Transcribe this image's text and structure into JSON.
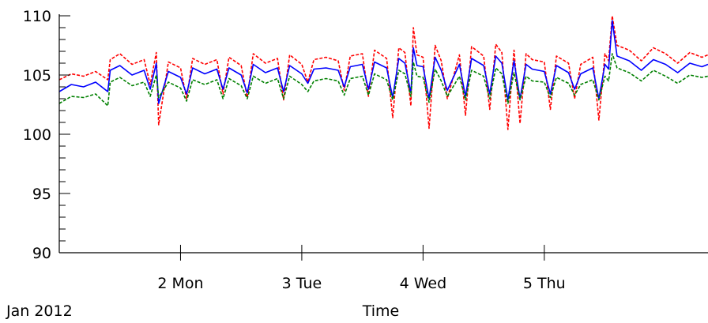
{
  "chart_data": {
    "type": "line",
    "title": "",
    "xlabel": "Time",
    "ylabel": "",
    "ylim": [
      90,
      110
    ],
    "xlim": [
      1.0,
      6.35
    ],
    "y_ticks": [
      90,
      95,
      100,
      105,
      110
    ],
    "y_tick_labels": [
      "90",
      "95",
      "100",
      "105",
      "110"
    ],
    "x_ticks": [
      2,
      3,
      4,
      5
    ],
    "x_tick_labels": [
      "2 Mon",
      "3 Tue",
      "4 Wed",
      "5 Thu"
    ],
    "x_origin_label": "Jan 2012",
    "grid": false,
    "legend": "none",
    "series": [
      {
        "color": "#ff0000",
        "dash": "dashed",
        "x": [
          1.0,
          1.1,
          1.2,
          1.3,
          1.4,
          1.42,
          1.5,
          1.6,
          1.7,
          1.75,
          1.8,
          1.82,
          1.9,
          2.0,
          2.05,
          2.1,
          2.2,
          2.3,
          2.35,
          2.4,
          2.5,
          2.55,
          2.6,
          2.7,
          2.8,
          2.85,
          2.9,
          3.0,
          3.05,
          3.1,
          3.2,
          3.3,
          3.35,
          3.4,
          3.5,
          3.55,
          3.6,
          3.7,
          3.75,
          3.8,
          3.85,
          3.9,
          3.92,
          3.95,
          4.0,
          4.05,
          4.1,
          4.15,
          4.2,
          4.3,
          4.35,
          4.4,
          4.5,
          4.55,
          4.6,
          4.65,
          4.7,
          4.75,
          4.8,
          4.85,
          4.9,
          5.0,
          5.05,
          5.1,
          5.2,
          5.25,
          5.3,
          5.4,
          5.45,
          5.5,
          5.53,
          5.56,
          5.6,
          5.7,
          5.8,
          5.9,
          6.0,
          6.1,
          6.2,
          6.3,
          6.35
        ],
        "y": [
          104.6,
          105.1,
          104.9,
          105.3,
          104.6,
          106.3,
          106.8,
          105.9,
          106.3,
          104.2,
          106.9,
          100.8,
          106.1,
          105.6,
          103.0,
          106.4,
          105.9,
          106.3,
          103.4,
          106.5,
          105.8,
          103.1,
          106.8,
          106.0,
          106.4,
          102.9,
          106.7,
          105.9,
          104.4,
          106.3,
          106.5,
          106.2,
          103.7,
          106.6,
          106.8,
          103.2,
          107.1,
          106.4,
          101.4,
          107.3,
          106.9,
          102.4,
          109.0,
          106.7,
          106.5,
          100.5,
          107.5,
          106.2,
          103.0,
          106.7,
          101.6,
          107.4,
          106.6,
          102.1,
          107.6,
          106.9,
          100.4,
          107.1,
          100.9,
          106.8,
          106.3,
          106.1,
          102.1,
          106.6,
          106.0,
          103.0,
          105.9,
          106.5,
          101.2,
          106.8,
          106.2,
          110.0,
          107.5,
          107.1,
          106.2,
          107.3,
          106.8,
          106.0,
          106.9,
          106.5,
          106.7
        ]
      },
      {
        "color": "#0000ff",
        "dash": "solid",
        "x": [
          1.0,
          1.1,
          1.2,
          1.3,
          1.4,
          1.42,
          1.5,
          1.6,
          1.7,
          1.75,
          1.8,
          1.82,
          1.9,
          2.0,
          2.05,
          2.1,
          2.2,
          2.3,
          2.35,
          2.4,
          2.5,
          2.55,
          2.6,
          2.7,
          2.8,
          2.85,
          2.9,
          3.0,
          3.05,
          3.1,
          3.2,
          3.3,
          3.35,
          3.4,
          3.5,
          3.55,
          3.6,
          3.7,
          3.75,
          3.8,
          3.85,
          3.9,
          3.92,
          3.95,
          4.0,
          4.05,
          4.1,
          4.15,
          4.2,
          4.3,
          4.35,
          4.4,
          4.5,
          4.55,
          4.6,
          4.65,
          4.7,
          4.75,
          4.8,
          4.85,
          4.9,
          5.0,
          5.05,
          5.1,
          5.2,
          5.25,
          5.3,
          5.4,
          5.45,
          5.5,
          5.53,
          5.56,
          5.6,
          5.7,
          5.8,
          5.9,
          6.0,
          6.1,
          6.2,
          6.3,
          6.35
        ],
        "y": [
          103.6,
          104.2,
          104.0,
          104.4,
          103.6,
          105.4,
          105.8,
          105.0,
          105.4,
          103.8,
          106.0,
          102.6,
          105.3,
          104.8,
          103.4,
          105.6,
          105.1,
          105.5,
          103.8,
          105.6,
          105.0,
          103.5,
          105.9,
          105.2,
          105.6,
          103.6,
          105.8,
          105.1,
          104.3,
          105.5,
          105.6,
          105.4,
          104.0,
          105.7,
          105.9,
          103.8,
          106.1,
          105.6,
          103.1,
          106.4,
          106.0,
          103.5,
          107.3,
          105.8,
          105.7,
          103.0,
          106.5,
          105.4,
          103.7,
          105.9,
          103.2,
          106.4,
          105.8,
          103.4,
          106.6,
          106.0,
          102.9,
          106.2,
          103.0,
          105.9,
          105.5,
          105.3,
          103.4,
          105.8,
          105.2,
          103.8,
          105.1,
          105.6,
          103.0,
          105.9,
          105.5,
          109.6,
          106.6,
          106.2,
          105.4,
          106.3,
          105.9,
          105.2,
          106.0,
          105.7,
          105.9
        ]
      },
      {
        "color": "#008000",
        "dash": "dashed",
        "x": [
          1.0,
          1.1,
          1.2,
          1.3,
          1.4,
          1.42,
          1.5,
          1.6,
          1.7,
          1.75,
          1.8,
          1.82,
          1.9,
          2.0,
          2.05,
          2.1,
          2.2,
          2.3,
          2.35,
          2.4,
          2.5,
          2.55,
          2.6,
          2.7,
          2.8,
          2.85,
          2.9,
          3.0,
          3.05,
          3.1,
          3.2,
          3.3,
          3.35,
          3.4,
          3.5,
          3.55,
          3.6,
          3.7,
          3.75,
          3.8,
          3.85,
          3.9,
          3.92,
          3.95,
          4.0,
          4.05,
          4.1,
          4.15,
          4.2,
          4.3,
          4.35,
          4.4,
          4.5,
          4.55,
          4.6,
          4.65,
          4.7,
          4.75,
          4.8,
          4.85,
          4.9,
          5.0,
          5.05,
          5.1,
          5.2,
          5.25,
          5.3,
          5.4,
          5.45,
          5.5,
          5.53,
          5.56,
          5.6,
          5.7,
          5.8,
          5.9,
          6.0,
          6.1,
          6.2,
          6.3,
          6.35
        ],
        "y": [
          102.6,
          103.2,
          103.1,
          103.4,
          102.4,
          104.4,
          104.8,
          104.1,
          104.4,
          103.2,
          105.0,
          103.1,
          104.4,
          103.9,
          102.8,
          104.6,
          104.2,
          104.6,
          103.0,
          104.7,
          104.1,
          103.0,
          104.9,
          104.3,
          104.7,
          103.0,
          104.9,
          104.2,
          103.6,
          104.5,
          104.7,
          104.5,
          103.3,
          104.7,
          104.9,
          103.3,
          105.1,
          104.6,
          102.9,
          105.4,
          105.1,
          103.2,
          106.1,
          104.9,
          104.8,
          102.7,
          105.5,
          104.5,
          103.2,
          104.9,
          102.9,
          105.4,
          104.9,
          103.0,
          105.6,
          105.1,
          102.6,
          105.2,
          102.9,
          104.9,
          104.5,
          104.4,
          103.1,
          104.8,
          104.3,
          103.3,
          104.2,
          104.6,
          102.9,
          104.9,
          104.5,
          106.8,
          105.6,
          105.2,
          104.5,
          105.4,
          104.9,
          104.3,
          105.0,
          104.8,
          104.9
        ]
      }
    ]
  }
}
